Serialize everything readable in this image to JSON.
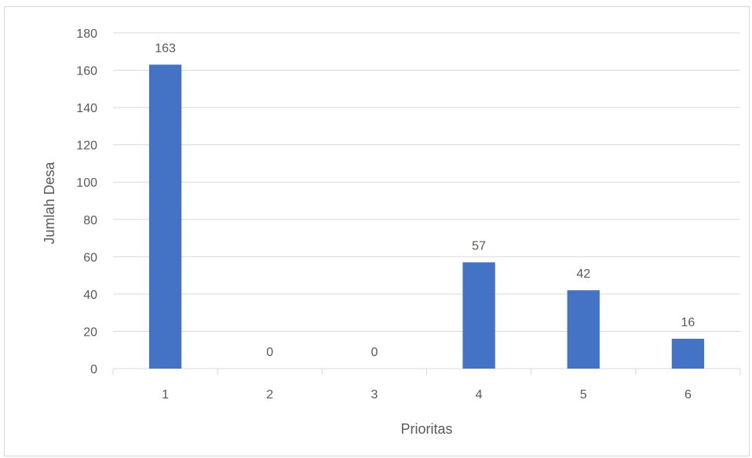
{
  "chart_data": {
    "type": "bar",
    "title": "",
    "xlabel": "Prioritas",
    "ylabel": "Jumlah Desa",
    "categories": [
      "1",
      "2",
      "3",
      "4",
      "5",
      "6"
    ],
    "values": [
      163,
      0,
      0,
      57,
      42,
      16
    ],
    "data_labels": [
      "163",
      "0",
      "0",
      "57",
      "42",
      "16"
    ],
    "ylim": [
      0,
      180
    ],
    "yticks": [
      "0",
      "20",
      "40",
      "60",
      "80",
      "100",
      "120",
      "140",
      "160",
      "180"
    ],
    "ytick_values": [
      0,
      20,
      40,
      60,
      80,
      100,
      120,
      140,
      160,
      180
    ],
    "grid": true,
    "legend": "none",
    "bar_color": "#4472c4",
    "grid_color": "#d9d9d9",
    "text_color": "#595959"
  }
}
